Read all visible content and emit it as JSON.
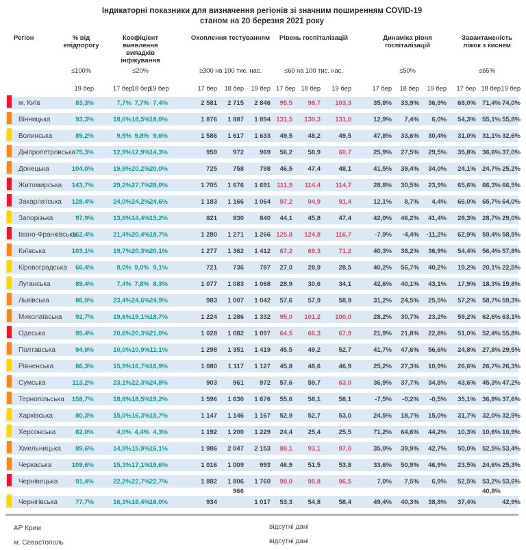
{
  "title": {
    "line1": "Індикаторні показники для визначення регіонів зі значним поширенням COVID-19",
    "line2": "станом на 20 березня 2021 року"
  },
  "colors": {
    "row_band": "#dce9f5",
    "text_dark": "#414042",
    "value_green": "#0f9b8a",
    "value_red": "#d5495f",
    "marker_red": "#e8192c",
    "marker_orange": "#f6861f",
    "marker_yellow": "#ffd400",
    "divider_gray": "#b2b2b2"
  },
  "columns": {
    "region_label": "Регіон",
    "hosp_red_threshold": 60,
    "groups": [
      {
        "id": "epid",
        "label": "% від епідпорогу",
        "threshold": "≤100%",
        "dates": [
          "19 бер"
        ]
      },
      {
        "id": "coef",
        "label": "Коефіцієнт виявлення випадків інфікування",
        "threshold": "≤20%",
        "dates": [
          "17 бер",
          "18 бер",
          "19 бер"
        ]
      },
      {
        "id": "test",
        "label": "Охоплення тестуванням",
        "threshold": "≥300 на 100 тис. нас.",
        "dates": [
          "17 бер",
          "18 бер",
          "19 бер"
        ]
      },
      {
        "id": "hosp",
        "label": "Рівень госпіталізацій",
        "threshold": "≤60 на 100 тис. нас.",
        "dates": [
          "17 бер",
          "18 бер",
          "19 бер"
        ]
      },
      {
        "id": "dyn",
        "label": "Динаміка рівня госпіталізацій",
        "threshold": "≤50%",
        "dates": [
          "17 бер",
          "18 бер",
          "19 бер"
        ]
      },
      {
        "id": "beds",
        "label": "Завантаженість ліжок з киснем",
        "threshold": "≤65%",
        "dates": [
          "17 бер",
          "18 бер",
          "19 бер"
        ]
      }
    ]
  },
  "rows": [
    {
      "region": "м. Київ",
      "marker": "red",
      "epid": "83,3%",
      "coef": [
        "7,7%",
        "7,7%",
        "7,4%"
      ],
      "test": [
        "2 581",
        "2 715",
        "2 846"
      ],
      "hosp": [
        "95,5",
        "98,7",
        "103,3"
      ],
      "dyn": [
        "35,8%",
        "33,9%",
        "36,9%"
      ],
      "beds": [
        "68,0%",
        "71,4%",
        "74,0%"
      ]
    },
    {
      "region": "Вінницька",
      "marker": "orange",
      "epid": "93,3%",
      "coef": [
        "18,6%",
        "18,5%",
        "18,0%"
      ],
      "test": [
        "1 876",
        "1 887",
        "1 894"
      ],
      "hosp": [
        "131,5",
        "130,3",
        "131,0"
      ],
      "dyn": [
        "12,9%",
        "7,4%",
        "6,0%"
      ],
      "beds": [
        "54,3%",
        "55,1%",
        "55,8%"
      ]
    },
    {
      "region": "Волинська",
      "marker": "yellow",
      "epid": "89,2%",
      "coef": [
        "9,5%",
        "9,8%",
        "9,6%"
      ],
      "test": [
        "1 586",
        "1 617",
        "1 633"
      ],
      "hosp": [
        "49,5",
        "48,2",
        "49,5"
      ],
      "dyn": [
        "47,8%",
        "33,6%",
        "30,4%"
      ],
      "beds": [
        "31,0%",
        "31,1%",
        "32,6%"
      ]
    },
    {
      "region": "Дніпропетровська",
      "marker": "orange",
      "epid": "75,3%",
      "coef": [
        "12,9%",
        "12,9%",
        "14,3%"
      ],
      "test": [
        "959",
        "972",
        "969"
      ],
      "hosp": [
        "56,2",
        "58,9",
        "60,7"
      ],
      "dyn": [
        "25,9%",
        "27,5%",
        "29,5%"
      ],
      "beds": [
        "35,8%",
        "36,6%",
        "37,0%"
      ]
    },
    {
      "region": "Донецька",
      "marker": "orange",
      "epid": "104,0%",
      "coef": [
        "19,9%",
        "20,2%",
        "20,0%"
      ],
      "test": [
        "725",
        "758",
        "798"
      ],
      "hosp": [
        "46,5",
        "47,4",
        "48,1"
      ],
      "dyn": [
        "41,5%",
        "39,4%",
        "34,0%"
      ],
      "beds": [
        "24,1%",
        "24,7%",
        "25,2%"
      ]
    },
    {
      "region": "Житомирська",
      "marker": "red",
      "epid": "143,7%",
      "coef": [
        "29,2%",
        "27,7%",
        "28,0%"
      ],
      "test": [
        "1 705",
        "1 676",
        "1 691"
      ],
      "hosp": [
        "111,9",
        "114,4",
        "114,7"
      ],
      "dyn": [
        "28,8%",
        "30,5%",
        "23,9%"
      ],
      "beds": [
        "65,6%",
        "66,3%",
        "66,5%"
      ]
    },
    {
      "region": "Закарпатська",
      "marker": "red",
      "epid": "128,4%",
      "coef": [
        "24,0%",
        "24,2%",
        "24,6%"
      ],
      "test": [
        "1 183",
        "1 166",
        "1 064"
      ],
      "hosp": [
        "97,2",
        "94,9",
        "91,4"
      ],
      "dyn": [
        "12,1%",
        "8,7%",
        "4,4%"
      ],
      "beds": [
        "66,0%",
        "65,7%",
        "64,0%"
      ]
    },
    {
      "region": "Запорізька",
      "marker": "yellow",
      "epid": "97,9%",
      "coef": [
        "13,6%",
        "14,4%",
        "15,2%"
      ],
      "test": [
        "821",
        "830",
        "840"
      ],
      "hosp": [
        "44,1",
        "45,8",
        "47,4"
      ],
      "dyn": [
        "42,0%",
        "46,2%",
        "41,4%"
      ],
      "beds": [
        "28,3%",
        "28,7%",
        "29,0%"
      ]
    },
    {
      "region": "Івано-Франківська",
      "marker": "red",
      "epid": "162,4%",
      "coef": [
        "21,4%",
        "20,4%",
        "18,7%"
      ],
      "test": [
        "1 280",
        "1 271",
        "1 266"
      ],
      "hosp": [
        "125,8",
        "124,8",
        "116,7"
      ],
      "dyn": [
        "-7,9%",
        "-4,4%",
        "-11,2%"
      ],
      "beds": [
        "62,9%",
        "59,4%",
        "58,5%"
      ]
    },
    {
      "region": "Київська",
      "marker": "orange",
      "epid": "103,1%",
      "coef": [
        "19,7%",
        "20,3%",
        "20,1%"
      ],
      "test": [
        "1 277",
        "1 362",
        "1 412"
      ],
      "hosp": [
        "67,2",
        "69,3",
        "71,2"
      ],
      "dyn": [
        "40,3%",
        "38,2%",
        "36,9%"
      ],
      "beds": [
        "54,4%",
        "56,4%",
        "57,8%"
      ]
    },
    {
      "region": "Кіровоградська",
      "marker": "yellow",
      "epid": "66,4%",
      "coef": [
        "8,0%",
        "9,0%",
        "9,1%"
      ],
      "test": [
        "721",
        "736",
        "787"
      ],
      "hosp": [
        "27,0",
        "28,9",
        "28,5"
      ],
      "dyn": [
        "40,2%",
        "56,7%",
        "40,2%"
      ],
      "beds": [
        "19,2%",
        "20,1%",
        "22,5%"
      ]
    },
    {
      "region": "Луганська",
      "marker": "yellow",
      "epid": "89,4%",
      "coef": [
        "7,4%",
        "7,8%",
        "8,3%"
      ],
      "test": [
        "1 077",
        "1 083",
        "1 068"
      ],
      "hosp": [
        "28,9",
        "30,6",
        "34,1"
      ],
      "dyn": [
        "42,6%",
        "40,1%",
        "43,1%"
      ],
      "beds": [
        "17,9%",
        "18,3%",
        "19,8%"
      ]
    },
    {
      "region": "Львівська",
      "marker": "orange",
      "epid": "86,0%",
      "coef": [
        "23,4%",
        "24,6%",
        "24,9%"
      ],
      "test": [
        "983",
        "1 007",
        "1 042"
      ],
      "hosp": [
        "57,6",
        "57,9",
        "58,9"
      ],
      "dyn": [
        "31,2%",
        "24,5%",
        "25,5%"
      ],
      "beds": [
        "57,2%",
        "58,7%",
        "59,3%"
      ]
    },
    {
      "region": "Миколаївська",
      "marker": "orange",
      "epid": "92,7%",
      "coef": [
        "19,6%",
        "19,1%",
        "18,7%"
      ],
      "test": [
        "1 224",
        "1 286",
        "1 332"
      ],
      "hosp": [
        "95,0",
        "101,2",
        "100,0"
      ],
      "dyn": [
        "28,2%",
        "30,7%",
        "23,2%"
      ],
      "beds": [
        "59,2%",
        "62,6%",
        "63,1%"
      ]
    },
    {
      "region": "Одеська",
      "marker": "red",
      "epid": "95,4%",
      "coef": [
        "20,6%",
        "20,3%",
        "21,0%"
      ],
      "test": [
        "1 028",
        "1 082",
        "1 097"
      ],
      "hosp": [
        "64,5",
        "66,3",
        "67,9"
      ],
      "dyn": [
        "21,9%",
        "21,8%",
        "22,8%"
      ],
      "beds": [
        "51,0%",
        "52,4%",
        "55,8%"
      ]
    },
    {
      "region": "Полтавська",
      "marker": "orange",
      "epid": "94,9%",
      "coef": [
        "10,0%",
        "10,9%",
        "11,1%"
      ],
      "test": [
        "1 298",
        "1 351",
        "1 419"
      ],
      "hosp": [
        "45,5",
        "49,2",
        "52,7"
      ],
      "dyn": [
        "41,7%",
        "47,6%",
        "56,6%"
      ],
      "beds": [
        "24,8%",
        "27,8%",
        "29,5%"
      ]
    },
    {
      "region": "Рівненська",
      "marker": "yellow",
      "epid": "86,3%",
      "coef": [
        "15,9%",
        "16,7%",
        "16,9%"
      ],
      "test": [
        "1 080",
        "1 117",
        "1 127"
      ],
      "hosp": [
        "45,8",
        "48,6",
        "46,9"
      ],
      "dyn": [
        "25,2%",
        "27,3%",
        "10,9%"
      ],
      "beds": [
        "26,6%",
        "26,7%",
        "26,3%"
      ]
    },
    {
      "region": "Сумська",
      "marker": "orange",
      "epid": "113,2%",
      "coef": [
        "23,1%",
        "22,3%",
        "24,8%"
      ],
      "test": [
        "903",
        "961",
        "972"
      ],
      "hosp": [
        "57,6",
        "59,7",
        "63,0"
      ],
      "dyn": [
        "36,9%",
        "37,7%",
        "34,8%"
      ],
      "beds": [
        "43,6%",
        "45,3%",
        "47,2%"
      ]
    },
    {
      "region": "Тернопільська",
      "marker": "orange",
      "epid": "158,7%",
      "coef": [
        "18,6%",
        "18,5%",
        "19,2%"
      ],
      "test": [
        "1 596",
        "1 630",
        "1 676"
      ],
      "hosp": [
        "55,6",
        "58,1",
        "58,1"
      ],
      "dyn": [
        "-7,5%",
        "-0,2%",
        "-0,5%"
      ],
      "beds": [
        "35,1%",
        "36,8%",
        "37,6%"
      ]
    },
    {
      "region": "Харківська",
      "marker": "yellow",
      "epid": "80,3%",
      "coef": [
        "15,0%",
        "16,3%",
        "15,7%"
      ],
      "test": [
        "1 147",
        "1 146",
        "1 167"
      ],
      "hosp": [
        "52,9",
        "52,7",
        "53,0"
      ],
      "dyn": [
        "24,5%",
        "18,7%",
        "15,0%"
      ],
      "beds": [
        "31,7%",
        "32,0%",
        "32,9%"
      ]
    },
    {
      "region": "Херсонська",
      "marker": "yellow",
      "epid": "82,0%",
      "coef": [
        "4,0%",
        "4,4%",
        "4,3%"
      ],
      "test": [
        "1 192",
        "1 200",
        "1 229"
      ],
      "hosp": [
        "24,4",
        "25,4",
        "25,5"
      ],
      "dyn": [
        "71,2%",
        "64,6%",
        "44,2%"
      ],
      "beds": [
        "10,3%",
        "10,6%",
        "10,9%"
      ]
    },
    {
      "region": "Хмельницька",
      "marker": "orange",
      "epid": "89,6%",
      "coef": [
        "14,9%",
        "15,9%",
        "16,1%"
      ],
      "test": [
        "1 986",
        "2 047",
        "2 153"
      ],
      "hosp": [
        "89,1",
        "93,1",
        "97,0"
      ],
      "dyn": [
        "35,0%",
        "39,9%",
        "42,7%"
      ],
      "beds": [
        "50,0%",
        "52,5%",
        "53,4%"
      ]
    },
    {
      "region": "Черкаська",
      "marker": "orange",
      "epid": "109,6%",
      "coef": [
        "15,3%",
        "17,1%",
        "19,6%"
      ],
      "test": [
        "1 016",
        "1 009",
        "993"
      ],
      "hosp": [
        "46,9",
        "51,5",
        "53,8"
      ],
      "dyn": [
        "33,6%",
        "50,9%",
        "46,9%"
      ],
      "beds": [
        "23,5%",
        "24,6%",
        "25,3%"
      ]
    },
    {
      "region": "Чернівецька",
      "marker": "red",
      "epid": "91,4%",
      "coef": [
        "22,2%",
        "22,7%",
        "22,7%"
      ],
      "test": [
        "1 882",
        "1 806",
        "1 760"
      ],
      "hosp": [
        "98,0",
        "95,8",
        "96,5"
      ],
      "dyn": [
        "7,0%",
        "7,5%",
        "6,9%"
      ],
      "beds": [
        "52,5%",
        "53,2%",
        "53,6%"
      ],
      "overflow": {
        "test": "966",
        "beds": "40,8%"
      }
    },
    {
      "region": "Чернігівська",
      "marker": "yellow",
      "epid": "77,7%",
      "coef": [
        "16,3%",
        "16,4%",
        "16,0%"
      ],
      "test": [
        "934",
        "",
        "1 017"
      ],
      "hosp": [
        "53,3",
        "54,8",
        "58,4"
      ],
      "dyn": [
        "49,4%",
        "40,3%",
        "38,8%"
      ],
      "beds": [
        "37,4%",
        "",
        "42,9%"
      ]
    }
  ],
  "footer": {
    "rows": [
      {
        "region": "АР Крим",
        "note": "відсутні дані"
      },
      {
        "region": "м. Севастополь",
        "note": "відсутні дані"
      }
    ]
  }
}
